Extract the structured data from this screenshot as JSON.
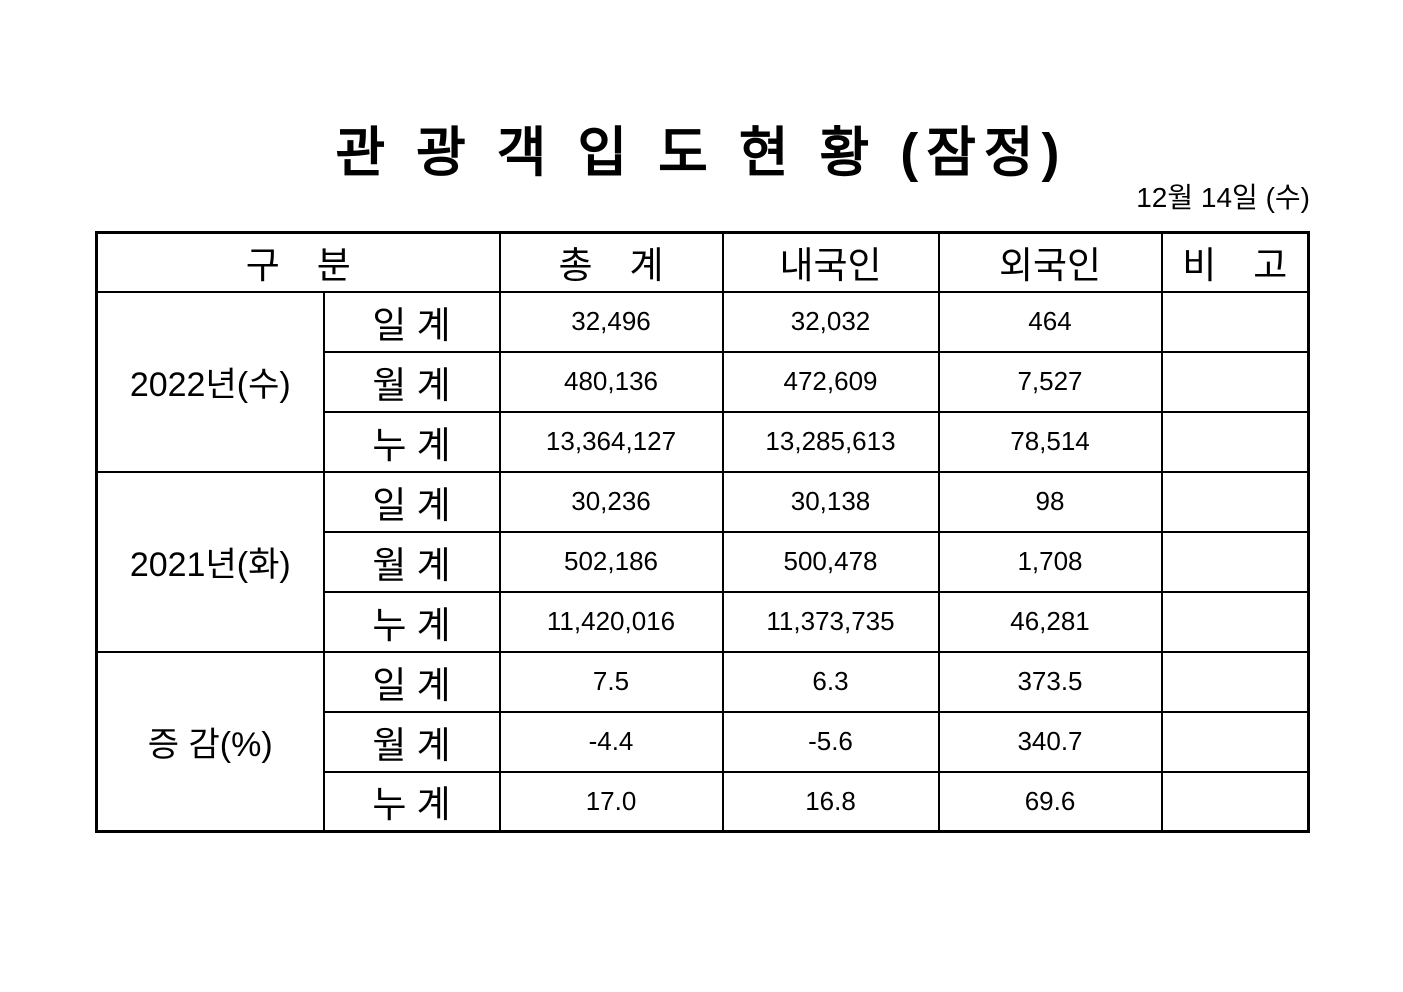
{
  "title": "관 광 객 입 도 현 황 (잠정)",
  "date": "12월 14일 (수)",
  "table": {
    "headers": {
      "gubun": "구　분",
      "total": "총　계",
      "domestic": "내국인",
      "foreign": "외국인",
      "note": "비　고"
    },
    "groups": [
      {
        "label": "2022년(수)",
        "rows": [
          {
            "type": "일 계",
            "total": "32,496",
            "domestic": "32,032",
            "foreign": "464",
            "note": ""
          },
          {
            "type": "월 계",
            "total": "480,136",
            "domestic": "472,609",
            "foreign": "7,527",
            "note": ""
          },
          {
            "type": "누 계",
            "total": "13,364,127",
            "domestic": "13,285,613",
            "foreign": "78,514",
            "note": ""
          }
        ]
      },
      {
        "label": "2021년(화)",
        "rows": [
          {
            "type": "일 계",
            "total": "30,236",
            "domestic": "30,138",
            "foreign": "98",
            "note": ""
          },
          {
            "type": "월 계",
            "total": "502,186",
            "domestic": "500,478",
            "foreign": "1,708",
            "note": ""
          },
          {
            "type": "누 계",
            "total": "11,420,016",
            "domestic": "11,373,735",
            "foreign": "46,281",
            "note": ""
          }
        ]
      },
      {
        "label": "증 감(%)",
        "rows": [
          {
            "type": "일 계",
            "total": "7.5",
            "domestic": "6.3",
            "foreign": "373.5",
            "note": ""
          },
          {
            "type": "월 계",
            "total": "-4.4",
            "domestic": "-5.6",
            "foreign": "340.7",
            "note": ""
          },
          {
            "type": "누 계",
            "total": "17.0",
            "domestic": "16.8",
            "foreign": "69.6",
            "note": ""
          }
        ]
      }
    ]
  }
}
